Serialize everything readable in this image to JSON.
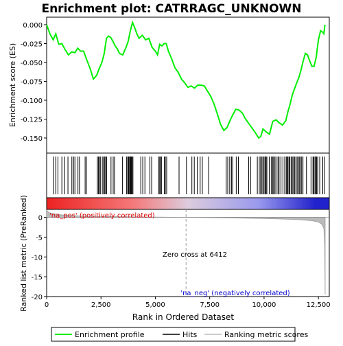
{
  "chart_data": {
    "type": "line",
    "title": "Enrichment plot: CATRRAGC_UNKNOWN",
    "xlabel": "Rank in Ordered Dataset",
    "ylabel_top": "Enrichment score (ES)",
    "ylabel_bottom": "Ranked list metric (PreRanked)",
    "xlim": [
      0,
      13000
    ],
    "x_ticks": [
      0,
      2500,
      5000,
      7500,
      10000,
      12500
    ],
    "x_tick_labels": [
      "0",
      "2,500",
      "5,000",
      "7,500",
      "10,000",
      "12,500"
    ],
    "es_ylim": [
      -0.17,
      0.01
    ],
    "es_y_ticks": [
      0.0,
      -0.025,
      -0.05,
      -0.075,
      -0.1,
      -0.125,
      -0.15
    ],
    "es_y_tick_labels": [
      "0.000",
      "-0.025",
      "-0.050",
      "-0.075",
      "-0.100",
      "-0.125",
      "-0.150"
    ],
    "metric_ylim": [
      -20,
      2
    ],
    "metric_y_ticks": [
      0,
      -5,
      -10,
      -15,
      -20
    ],
    "metric_y_tick_labels": [
      "0",
      "-5",
      "-10",
      "-15",
      "-20"
    ],
    "zero_cross_rank": 6412,
    "zero_cross_label": "Zero cross at 6412",
    "pos_label": "'na_pos' (positively correlated)",
    "neg_label": "'na_neg' (negatively correlated)",
    "colors": {
      "es_line": "#00ee00",
      "pos_text": "#dd0000",
      "neg_text": "#0000cc",
      "hits": "#000000",
      "metric_fill": "#bbbbbb"
    },
    "legend": {
      "placement": "bottom",
      "entries": [
        "Enrichment profile",
        "Hits",
        "Ranking metric scores"
      ]
    },
    "es_series": {
      "name": "Enrichment profile",
      "x": [
        0,
        150,
        300,
        420,
        560,
        700,
        850,
        1000,
        1150,
        1300,
        1430,
        1560,
        1700,
        1850,
        2000,
        2150,
        2300,
        2420,
        2540,
        2650,
        2750,
        2850,
        2950,
        3050,
        3150,
        3250,
        3350,
        3500,
        3650,
        3750,
        3850,
        3950,
        4050,
        4150,
        4250,
        4400,
        4550,
        4700,
        4850,
        5000,
        5100,
        5200,
        5300,
        5400,
        5500,
        5600,
        5750,
        5900,
        6050,
        6200,
        6350,
        6500,
        6650,
        6800,
        6950,
        7100,
        7250,
        7400,
        7550,
        7700,
        7850,
        8000,
        8150,
        8300,
        8450,
        8550,
        8700,
        8850,
        9000,
        9150,
        9300,
        9450,
        9600,
        9750,
        9850,
        9950,
        10100,
        10250,
        10400,
        10550,
        10700,
        10850,
        11000,
        11100,
        11200,
        11300,
        11400,
        11500,
        11600,
        11700,
        11800,
        11900,
        12000,
        12100,
        12200,
        12300,
        12400,
        12500,
        12600,
        12700,
        12750,
        12800
      ],
      "y": [
        0.0,
        -0.012,
        -0.02,
        -0.012,
        -0.026,
        -0.025,
        -0.033,
        -0.04,
        -0.036,
        -0.037,
        -0.031,
        -0.035,
        -0.035,
        -0.047,
        -0.058,
        -0.072,
        -0.067,
        -0.058,
        -0.05,
        -0.038,
        -0.018,
        -0.015,
        -0.017,
        -0.022,
        -0.028,
        -0.032,
        -0.038,
        -0.04,
        -0.03,
        -0.022,
        -0.008,
        0.003,
        -0.004,
        -0.012,
        -0.018,
        -0.014,
        -0.02,
        -0.018,
        -0.03,
        -0.035,
        -0.04,
        -0.026,
        -0.028,
        -0.025,
        -0.025,
        -0.035,
        -0.045,
        -0.057,
        -0.063,
        -0.072,
        -0.077,
        -0.083,
        -0.081,
        -0.084,
        -0.08,
        -0.08,
        -0.081,
        -0.088,
        -0.095,
        -0.105,
        -0.118,
        -0.132,
        -0.14,
        -0.136,
        -0.126,
        -0.12,
        -0.112,
        -0.113,
        -0.117,
        -0.125,
        -0.131,
        -0.137,
        -0.143,
        -0.15,
        -0.148,
        -0.138,
        -0.142,
        -0.145,
        -0.128,
        -0.126,
        -0.13,
        -0.133,
        -0.127,
        -0.115,
        -0.105,
        -0.093,
        -0.085,
        -0.077,
        -0.07,
        -0.06,
        -0.048,
        -0.038,
        -0.04,
        -0.048,
        -0.055,
        -0.055,
        -0.043,
        -0.02,
        -0.008,
        -0.01,
        -0.012,
        0.0
      ]
    },
    "hits_x": [
      310,
      420,
      520,
      700,
      830,
      980,
      1160,
      1240,
      1300,
      1440,
      1510,
      1770,
      1830,
      2330,
      2380,
      2440,
      2470,
      2560,
      2620,
      2660,
      2710,
      2760,
      2960,
      3060,
      3120,
      3490,
      3680,
      3730,
      3770,
      3810,
      3850,
      3870,
      3900,
      3930,
      3970,
      4330,
      4420,
      4520,
      4750,
      4830,
      5150,
      5200,
      5230,
      5280,
      5410,
      5460,
      5520,
      6090,
      6430,
      6680,
      6790,
      6930,
      7060,
      7160,
      7450,
      8260,
      8330,
      8420,
      8500,
      8560,
      8720,
      8820,
      9290,
      9380,
      9690,
      9780,
      9840,
      9900,
      9950,
      10000,
      10050,
      10090,
      10130,
      10240,
      10330,
      10400,
      10440,
      10500,
      10550,
      10640,
      10690,
      10780,
      10870,
      10950,
      11020,
      11060,
      11100,
      11150,
      11190,
      11250,
      11300,
      11360,
      11400,
      11460,
      11520,
      11570,
      11620,
      11680,
      11730,
      11790,
      11950,
      12160,
      12250,
      12290,
      12340,
      12380,
      12420,
      12470,
      12560,
      12700,
      12780
    ],
    "metric_series": {
      "name": "Ranking metric scores",
      "x": [
        0,
        100,
        300,
        700,
        1500,
        3000,
        5000,
        6412,
        8000,
        10000,
        11500,
        12200,
        12500,
        12650,
        12750,
        12790,
        12810
      ],
      "y": [
        1.8,
        1.2,
        0.9,
        0.6,
        0.35,
        0.18,
        0.06,
        0.0,
        -0.12,
        -0.3,
        -0.55,
        -0.85,
        -1.2,
        -1.7,
        -2.8,
        -7.0,
        -19.5
      ]
    },
    "heat_bar": {
      "pos_color": "#ee2222",
      "mid_color": "#ddccdd",
      "neg_color": "#2222cc"
    }
  }
}
